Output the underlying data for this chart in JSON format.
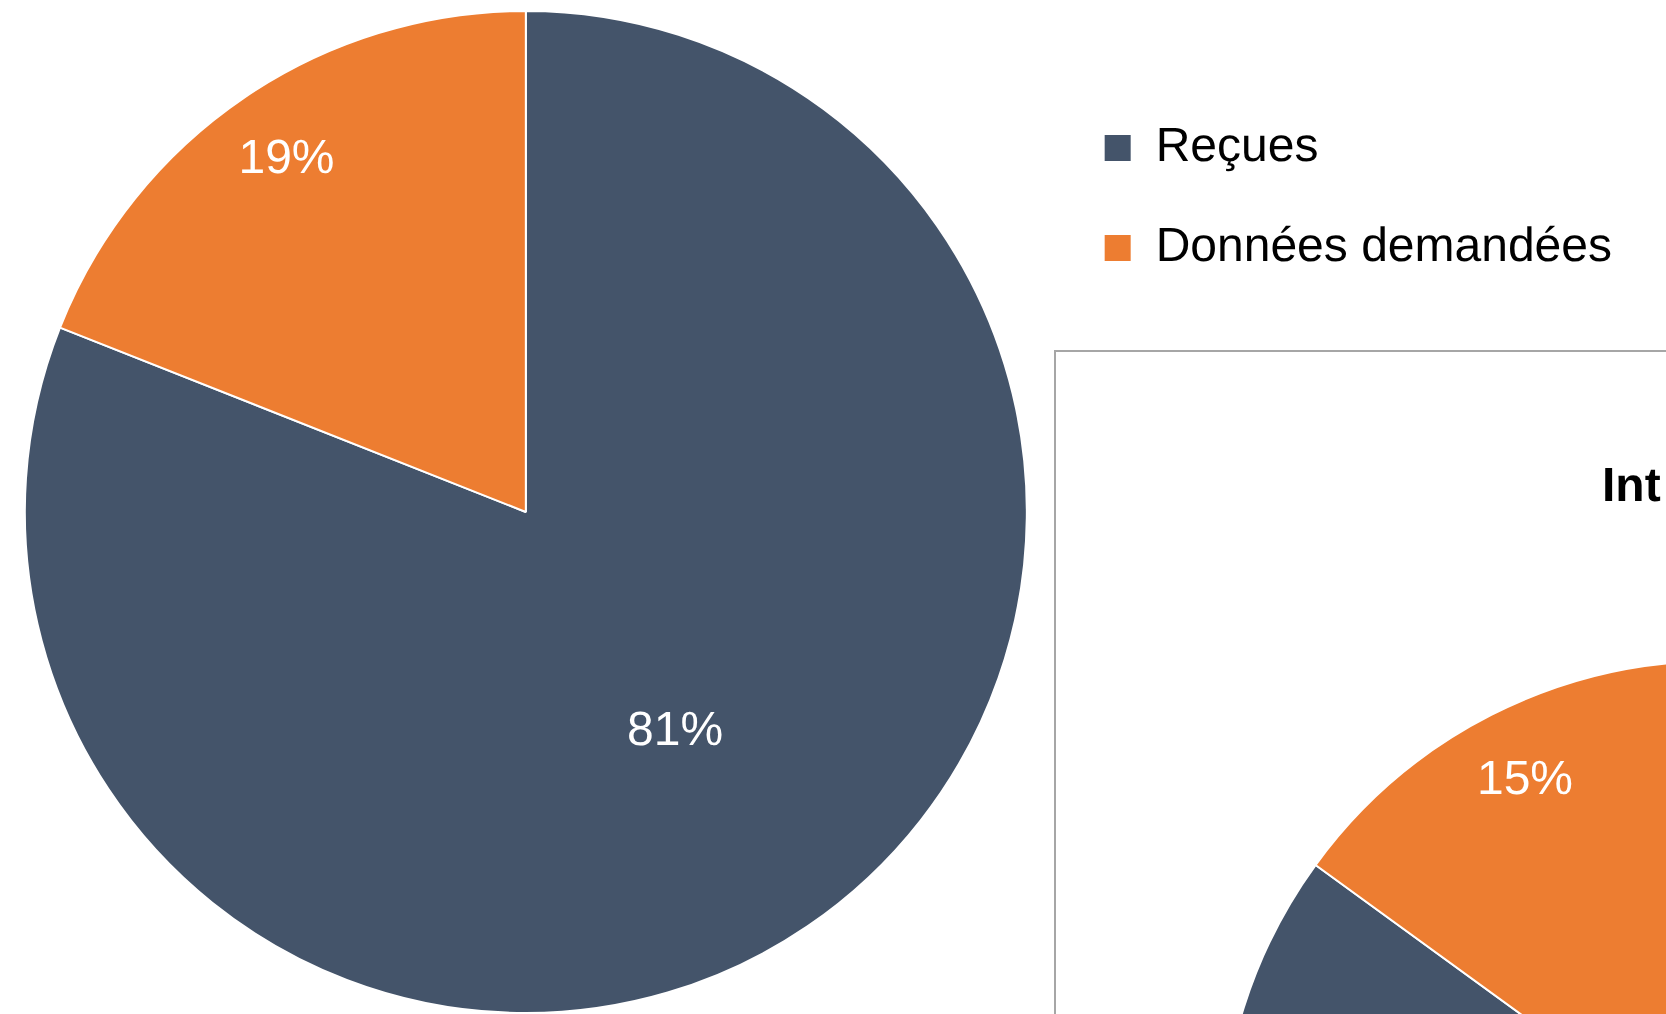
{
  "chart_data": [
    {
      "type": "pie",
      "categories": [
        "Reçues",
        "Données demandées"
      ],
      "values": [
        81,
        19
      ],
      "colors": [
        "#44546a",
        "#ed7d31"
      ],
      "value_labels": [
        "81%",
        "19%"
      ],
      "legend": "top right"
    },
    {
      "type": "pie",
      "title": "Int",
      "categories": [
        null,
        null
      ],
      "values": [
        85,
        15
      ],
      "colors": [
        "#44546a",
        "#ed7d31"
      ],
      "value_labels": [
        null,
        "15%"
      ]
    }
  ]
}
